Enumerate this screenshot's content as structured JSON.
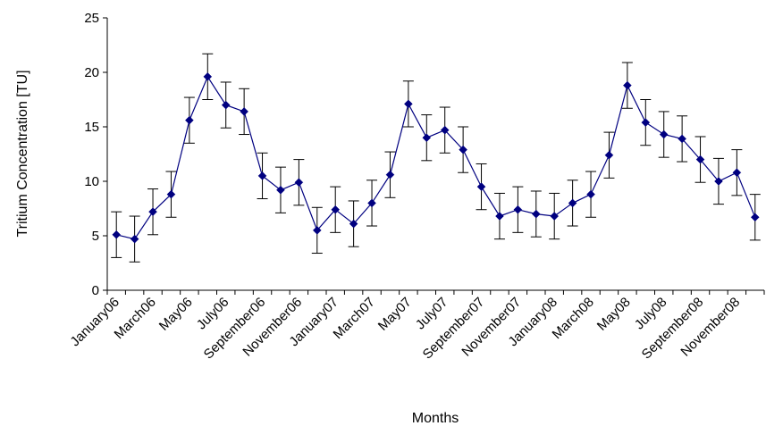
{
  "chart_data": {
    "type": "line",
    "xlabel": "Months",
    "ylabel": "Tritium Concentration [TU]",
    "ylim": [
      0,
      25
    ],
    "yticks": [
      0,
      5,
      10,
      15,
      20,
      25
    ],
    "grid": false,
    "legend": "none",
    "categories": [
      "January06",
      "February06",
      "March06",
      "April06",
      "May06",
      "June06",
      "July06",
      "August06",
      "September06",
      "October06",
      "November06",
      "December06",
      "January07",
      "February07",
      "March07",
      "April07",
      "May07",
      "June07",
      "July07",
      "August07",
      "September07",
      "October07",
      "November07",
      "December07",
      "January08",
      "February08",
      "March08",
      "April08",
      "May08",
      "June08",
      "July08",
      "August08",
      "September08",
      "October08",
      "November08",
      "December08"
    ],
    "tick_labels": [
      "January06",
      "March06",
      "May06",
      "July06",
      "September06",
      "November06",
      "January07",
      "March07",
      "May07",
      "July07",
      "September07",
      "November07",
      "January08",
      "March08",
      "May08",
      "July08",
      "September08",
      "November08"
    ],
    "series": [
      {
        "values": [
          5.1,
          4.7,
          7.2,
          8.8,
          15.6,
          19.6,
          17.0,
          16.4,
          10.5,
          9.2,
          9.9,
          5.5,
          7.4,
          6.1,
          8.0,
          10.6,
          17.1,
          14.0,
          14.7,
          12.9,
          9.5,
          6.8,
          7.4,
          7.0,
          6.8,
          8.0,
          8.8,
          12.4,
          18.8,
          15.4,
          14.3,
          13.9,
          12.0,
          10.0,
          10.8,
          6.7
        ],
        "error": 2.1,
        "color": "#000080"
      }
    ]
  }
}
